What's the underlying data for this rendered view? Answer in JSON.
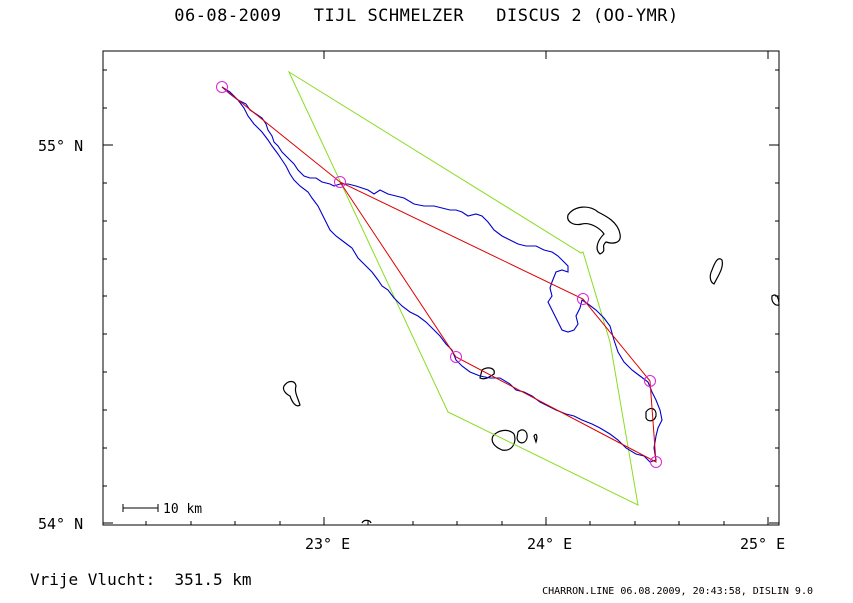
{
  "title": "06-08-2009   TIJL SCHMELZER   DISCUS 2 (OO-YMR)",
  "axes": {
    "lat_labels": [
      "55° N",
      "54° N"
    ],
    "lon_labels": [
      "23° E",
      "24° E",
      "25° E"
    ]
  },
  "scale_bar": "10 km",
  "footer": {
    "distance_label": "Vrije Vlucht:",
    "distance_value": "351.5 km",
    "software_info": "CHARRON.LINE 06.08.2009, 20:43:58, DISLIN 9.0"
  },
  "colors": {
    "track": "#0000cc",
    "route": "#dd0000",
    "sector": "#88dd22",
    "turnpoint": "#dd22dd",
    "coast": "#000000"
  }
}
